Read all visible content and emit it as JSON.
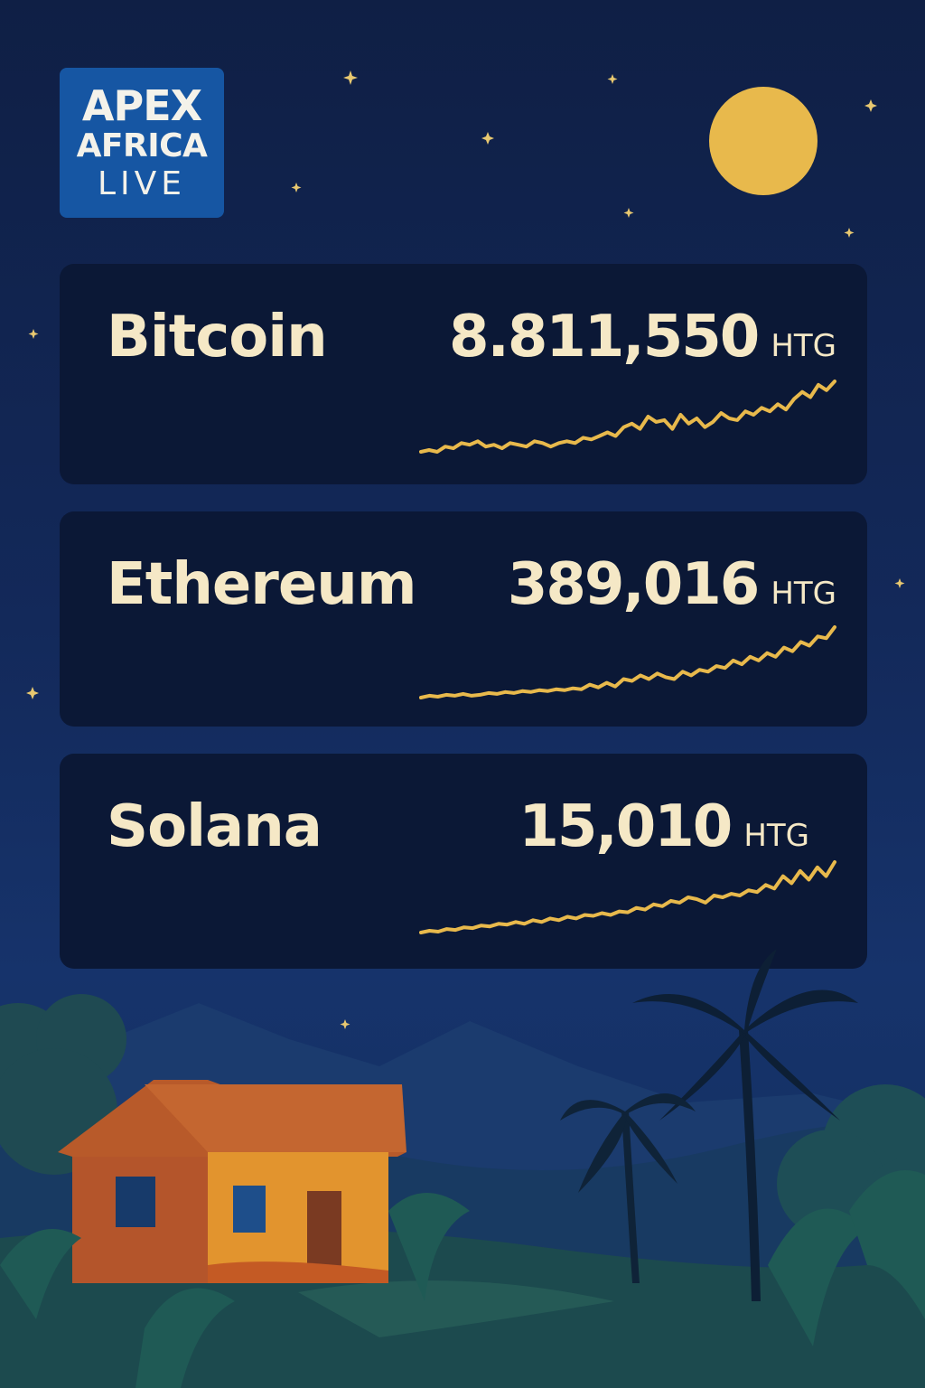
{
  "brand": {
    "line1": "APEX",
    "line2": "AFRICA",
    "line3": "LIVE"
  },
  "colors": {
    "accent": "#e8b94c",
    "card_bg": "#0b1836",
    "text": "#f5e8c6",
    "logo_bg": "#1656a3"
  },
  "tickers": [
    {
      "name": "Bitcoin",
      "price": "8.811,550",
      "currency": "HTG",
      "trend": [
        12,
        14,
        12,
        18,
        16,
        22,
        20,
        24,
        18,
        20,
        16,
        22,
        20,
        18,
        24,
        22,
        18,
        22,
        24,
        22,
        28,
        26,
        30,
        34,
        30,
        40,
        44,
        38,
        52,
        46,
        48,
        38,
        54,
        44,
        50,
        40,
        46,
        56,
        50,
        48,
        58,
        54,
        62,
        58,
        66,
        60,
        72,
        80,
        74,
        88,
        82,
        92
      ]
    },
    {
      "name": "Ethereum",
      "price": "389,016",
      "currency": "HTG",
      "trend": [
        10,
        12,
        11,
        13,
        12,
        14,
        12,
        13,
        15,
        14,
        16,
        15,
        17,
        16,
        18,
        17,
        19,
        18,
        20,
        19,
        24,
        21,
        26,
        22,
        30,
        28,
        34,
        30,
        36,
        32,
        30,
        38,
        34,
        40,
        38,
        44,
        42,
        50,
        46,
        54,
        50,
        58,
        54,
        64,
        60,
        70,
        66,
        76,
        74,
        86
      ]
    },
    {
      "name": "Solana",
      "price": "15,010",
      "currency": "HTG",
      "trend": [
        10,
        12,
        11,
        14,
        13,
        16,
        15,
        18,
        17,
        20,
        19,
        22,
        20,
        24,
        22,
        26,
        24,
        28,
        26,
        30,
        29,
        32,
        30,
        34,
        33,
        38,
        36,
        42,
        40,
        46,
        44,
        50,
        48,
        44,
        52,
        50,
        54,
        52,
        58,
        56,
        64,
        60,
        74,
        66,
        80,
        70,
        84,
        74,
        90
      ]
    }
  ]
}
